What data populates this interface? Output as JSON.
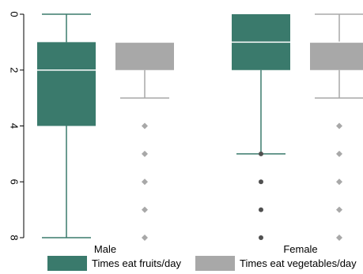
{
  "chart_data": {
    "type": "box",
    "orientation": "vertical",
    "y_axis_reversed": true,
    "ylim": [
      0,
      8
    ],
    "y_ticks": [
      "0",
      "2",
      "4",
      "6",
      "8"
    ],
    "categories": [
      "Male",
      "Female"
    ],
    "series": [
      {
        "name": "Times eat fruits/day",
        "color": "#3a7a6c",
        "boxes": [
          {
            "category": "Male",
            "q1": 1,
            "median": 2,
            "q3": 4,
            "whisker_low": 0,
            "whisker_high": 8,
            "outliers": []
          },
          {
            "category": "Female",
            "q1": 0,
            "median": 1,
            "q3": 2,
            "whisker_low": 0,
            "whisker_high": 5,
            "outliers": [
              5,
              6,
              7,
              8
            ]
          }
        ]
      },
      {
        "name": "Times eat vegetables/day",
        "color": "#a8a8a8",
        "boxes": [
          {
            "category": "Male",
            "q1": 1,
            "median": 1,
            "q3": 2,
            "whisker_low": 1,
            "whisker_high": 3,
            "outliers": [
              4,
              5,
              6,
              7,
              8
            ]
          },
          {
            "category": "Female",
            "q1": 1,
            "median": 1,
            "q3": 2,
            "whisker_low": 0,
            "whisker_high": 3,
            "outliers": [
              4,
              5,
              6,
              7,
              8
            ]
          }
        ]
      }
    ],
    "legend_position": "bottom",
    "grid": false,
    "title": "",
    "xlabel": "",
    "ylabel": ""
  }
}
